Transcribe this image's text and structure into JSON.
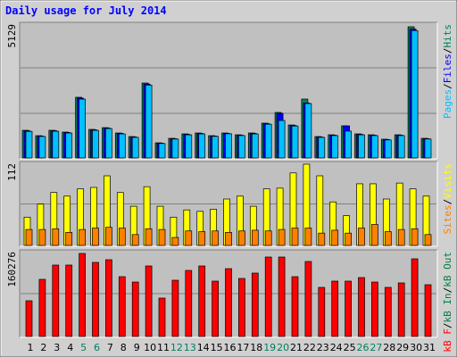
{
  "title": "Daily usage for July 2014",
  "separator": "/",
  "chart_data": [
    {
      "type": "bar",
      "ylim": [
        0,
        5129
      ],
      "yticks": [
        5129
      ],
      "series": [
        {
          "name": "Pages",
          "color": "#00c0ff",
          "values": [
            1040,
            840,
            1045,
            975,
            2300,
            1080,
            1150,
            940,
            805,
            2850,
            565,
            740,
            905,
            940,
            845,
            945,
            875,
            940,
            1320,
            1465,
            1250,
            2128,
            805,
            875,
            1050,
            905,
            875,
            705,
            875,
            4980,
            740
          ]
        },
        {
          "name": "Files",
          "color": "#0000ff",
          "values": [
            1060,
            855,
            1065,
            995,
            2340,
            1100,
            1170,
            960,
            820,
            2890,
            580,
            755,
            925,
            960,
            860,
            960,
            890,
            960,
            1340,
            1745,
            1270,
            2150,
            820,
            890,
            1256,
            925,
            890,
            720,
            890,
            5040,
            755
          ]
        },
        {
          "name": "Hits",
          "color": "#00805c",
          "values": [
            1082,
            872,
            1082,
            1012,
            2373,
            1117,
            1186,
            977,
            837,
            2931,
            593,
            768,
            942,
            977,
            872,
            977,
            907,
            977,
            1361,
            1780,
            1290,
            2303,
            837,
            907,
            1256,
            942,
            907,
            733,
            907,
            5129,
            768
          ]
        }
      ]
    },
    {
      "type": "bar",
      "ylim": [
        0,
        112
      ],
      "yticks": [
        112
      ],
      "series": [
        {
          "name": "Sites",
          "color": "#ff8000",
          "values": [
            22,
            22,
            23,
            18,
            22,
            24,
            25,
            24,
            15,
            23,
            22,
            11,
            20,
            19,
            20,
            18,
            20,
            21,
            20,
            22,
            24,
            24,
            17,
            21,
            17,
            24,
            29,
            19,
            22,
            23,
            15
          ]
        },
        {
          "name": "Visits",
          "color": "#ffff00",
          "values": [
            39,
            57,
            73,
            68,
            78,
            80,
            96,
            73,
            54,
            81,
            54,
            39,
            49,
            47,
            50,
            64,
            68,
            54,
            78,
            79,
            100,
            112,
            96,
            60,
            41,
            85,
            85,
            64,
            86,
            78,
            68
          ]
        }
      ]
    },
    {
      "type": "bar",
      "ylim": [
        0,
        160276
      ],
      "yticks": [
        160276
      ],
      "categories": [
        "1",
        "2",
        "3",
        "4",
        "5",
        "6",
        "7",
        "8",
        "9",
        "10",
        "11",
        "12",
        "13",
        "14",
        "15",
        "16",
        "17",
        "18",
        "19",
        "20",
        "21",
        "22",
        "23",
        "24",
        "25",
        "26",
        "27",
        "28",
        "29",
        "30",
        "31"
      ],
      "highlight_categories": [
        "5",
        "6",
        "12",
        "13",
        "19",
        "20",
        "26",
        "27"
      ],
      "highlight_color": "#00805c",
      "series": [
        {
          "name": "kB F",
          "color": "#ff0000",
          "values": [
            68936,
            110298,
            137872,
            137872,
            160276,
            143042,
            148212,
            115468,
            105127,
            136149,
            74106,
            108574,
            127532,
            136149,
            106851,
            130978,
            112021,
            122361,
            153383,
            153383,
            115468,
            144766,
            94787,
            106851,
            106851,
            113744,
            105127,
            94787,
            103404,
            149936,
            99957
          ]
        },
        {
          "name": "kB In",
          "color": "#008040",
          "values": [
            0,
            0,
            0,
            0,
            0,
            0,
            0,
            0,
            0,
            0,
            0,
            0,
            0,
            0,
            0,
            0,
            0,
            0,
            0,
            0,
            0,
            0,
            0,
            0,
            0,
            0,
            0,
            0,
            0,
            0,
            0
          ]
        },
        {
          "name": "kB Out",
          "color": "#008040",
          "values": [
            0,
            0,
            0,
            0,
            0,
            0,
            0,
            0,
            0,
            0,
            0,
            0,
            0,
            0,
            0,
            0,
            0,
            0,
            0,
            0,
            0,
            0,
            0,
            0,
            0,
            0,
            0,
            0,
            0,
            0,
            0
          ]
        }
      ]
    }
  ]
}
